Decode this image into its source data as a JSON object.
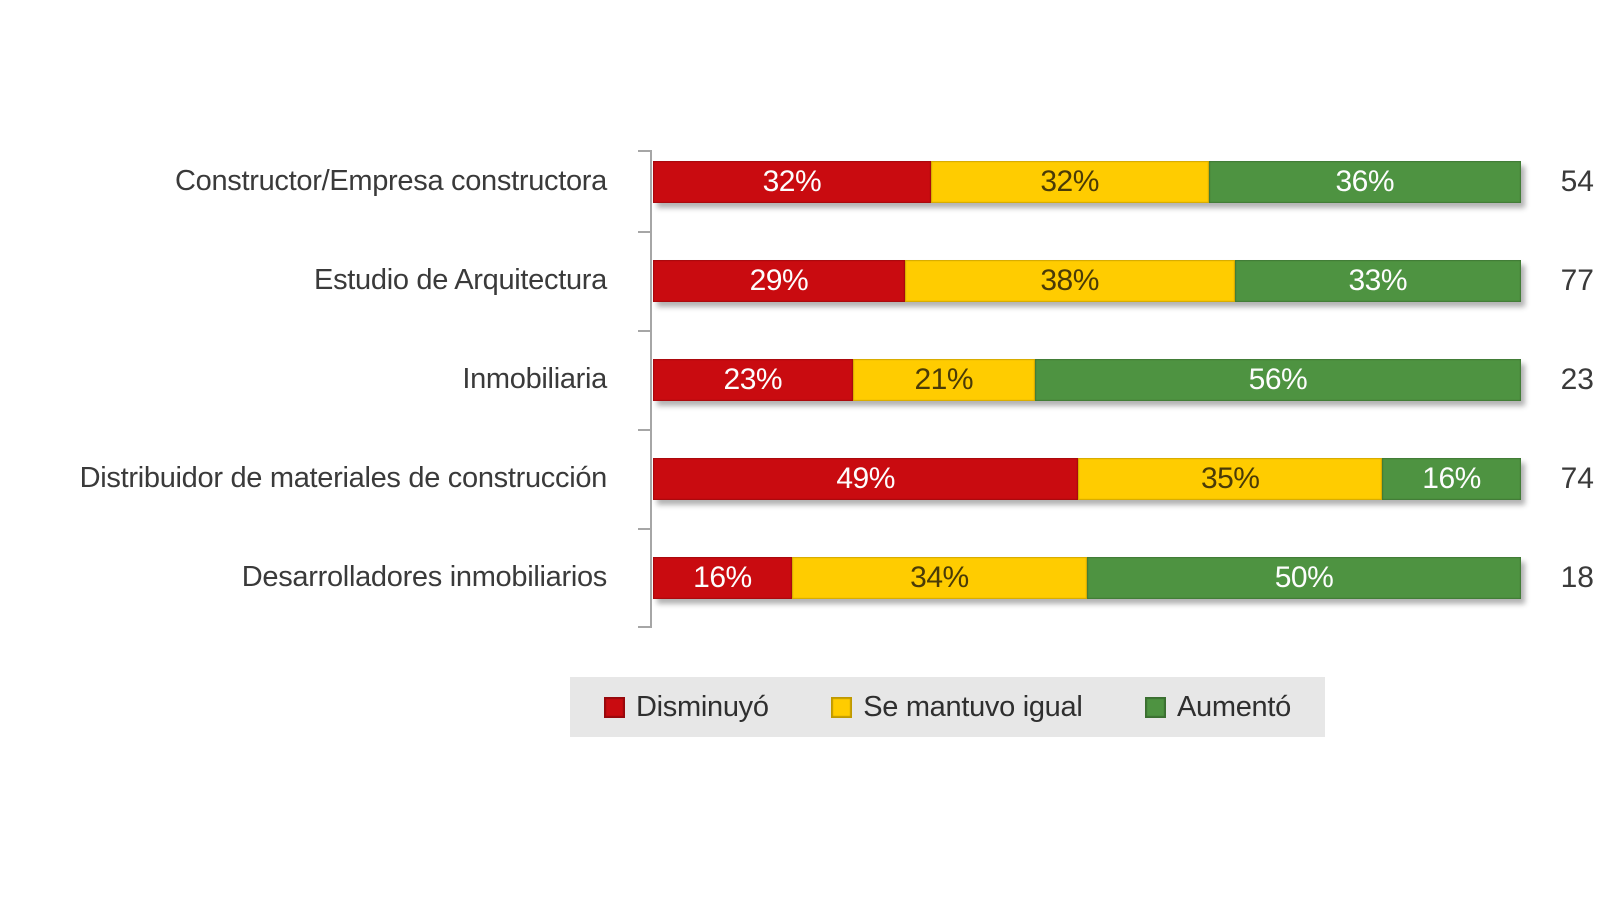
{
  "chart_data": {
    "type": "bar",
    "orientation": "horizontal_stacked",
    "title": "",
    "xlabel": "",
    "ylabel": "",
    "value_suffix": "%",
    "xlim": [
      0,
      100
    ],
    "grid": false,
    "legend_position": "bottom",
    "legend_background": "#E7E7E7",
    "categories": [
      "Constructor/Empresa constructora",
      "Estudio de Arquitectura",
      "Inmobiliaria",
      "Distribuidor de materiales de construcción",
      "Desarrolladores inmobiliarios"
    ],
    "series": [
      {
        "name": "Disminuyó",
        "color": "#C90B10",
        "values": [
          32,
          29,
          23,
          49,
          16
        ]
      },
      {
        "name": "Se mantuvo igual",
        "color": "#FFCC00",
        "values": [
          32,
          38,
          21,
          35,
          34
        ]
      },
      {
        "name": "Aumentó",
        "color": "#4E9341",
        "values": [
          36,
          33,
          56,
          16,
          50
        ]
      }
    ],
    "right_labels": [
      "54",
      "77",
      "23",
      "74",
      "18"
    ]
  }
}
